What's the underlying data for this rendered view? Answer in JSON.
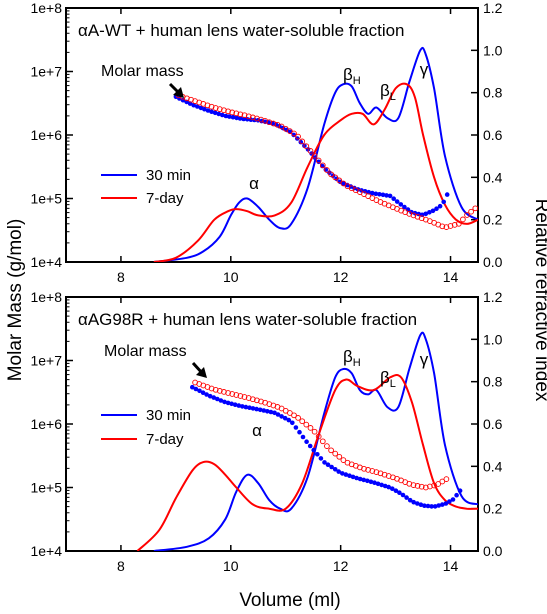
{
  "figure": {
    "ylabel_left": "Molar Mass (g/mol)",
    "ylabel_right": "Relative refractive index",
    "xlabel": "Volume (ml)"
  },
  "chart_data": [
    {
      "type": "line",
      "title": "αA-WT + human lens water-soluble fraction",
      "xlim": [
        7,
        14.5
      ],
      "x_ticks": [
        8,
        10,
        12,
        14
      ],
      "y_left": {
        "scale": "log",
        "ticks": [
          "1e+4",
          "1e+5",
          "1e+6",
          "1e+7",
          "1e+8"
        ],
        "range": [
          10000,
          100000000
        ]
      },
      "y_right": {
        "scale": "linear",
        "ticks": [
          "0.0",
          "0.2",
          "0.4",
          "0.6",
          "0.8",
          "1.0",
          "1.2"
        ],
        "range": [
          0,
          1.2
        ]
      },
      "legend": {
        "position": "left",
        "entries": [
          {
            "name": "30 min",
            "color": "#0000ff"
          },
          {
            "name": "7-day",
            "color": "#ff0000"
          }
        ]
      },
      "annotations": [
        "Molar mass",
        "α",
        "βH",
        "βL",
        "γ"
      ],
      "series": [
        {
          "name": "30 min",
          "kind": "refractive-index",
          "axis": "right",
          "color": "#0000ff",
          "x": [
            8.6,
            9.2,
            9.5,
            9.8,
            10.0,
            10.15,
            10.3,
            10.5,
            10.7,
            10.9,
            11.1,
            11.4,
            11.7,
            11.9,
            12.05,
            12.2,
            12.35,
            12.5,
            12.65,
            12.85,
            13.05,
            13.25,
            13.45,
            13.55,
            13.7,
            13.9,
            14.2,
            14.5
          ],
          "y": [
            0.0,
            0.02,
            0.05,
            0.12,
            0.22,
            0.28,
            0.3,
            0.26,
            0.2,
            0.16,
            0.18,
            0.35,
            0.65,
            0.8,
            0.84,
            0.83,
            0.75,
            0.7,
            0.73,
            0.68,
            0.68,
            0.85,
            1.0,
            0.98,
            0.82,
            0.5,
            0.26,
            0.2
          ]
        },
        {
          "name": "7-day",
          "kind": "refractive-index",
          "axis": "right",
          "color": "#ff0000",
          "x": [
            8.6,
            9.0,
            9.4,
            9.7,
            9.95,
            10.1,
            10.3,
            10.5,
            10.8,
            11.1,
            11.4,
            11.7,
            12.0,
            12.2,
            12.4,
            12.6,
            12.8,
            13.0,
            13.2,
            13.35,
            13.5,
            13.7,
            13.9,
            14.1,
            14.3,
            14.5
          ],
          "y": [
            0.0,
            0.02,
            0.1,
            0.2,
            0.24,
            0.25,
            0.24,
            0.22,
            0.22,
            0.28,
            0.45,
            0.6,
            0.67,
            0.7,
            0.7,
            0.65,
            0.72,
            0.82,
            0.84,
            0.78,
            0.6,
            0.4,
            0.27,
            0.2,
            0.18,
            0.2
          ]
        },
        {
          "name": "30 min",
          "kind": "molar-mass",
          "axis": "left",
          "color": "#0000ff",
          "x": [
            9.0,
            9.3,
            9.6,
            9.9,
            10.2,
            10.5,
            10.8,
            11.1,
            11.4,
            11.7,
            12.0,
            12.3,
            12.6,
            12.9,
            13.1,
            13.3,
            13.5,
            13.7,
            13.85,
            13.95
          ],
          "y": [
            4000000,
            3000000,
            2400000,
            2000000,
            1800000,
            1700000,
            1500000,
            1100000,
            600000,
            300000,
            180000,
            140000,
            120000,
            110000,
            80000,
            60000,
            55000,
            65000,
            80000,
            120000
          ]
        },
        {
          "name": "7-day",
          "kind": "molar-mass",
          "axis": "left",
          "color": "#ff0000",
          "x": [
            9.05,
            9.4,
            9.7,
            10.0,
            10.3,
            10.6,
            10.9,
            11.2,
            11.5,
            11.8,
            12.1,
            12.4,
            12.7,
            13.0,
            13.3,
            13.6,
            13.9,
            14.15,
            14.3,
            14.45
          ],
          "y": [
            4200000,
            3300000,
            2700000,
            2300000,
            2000000,
            1700000,
            1400000,
            1000000,
            500000,
            250000,
            160000,
            120000,
            90000,
            70000,
            55000,
            45000,
            35000,
            40000,
            55000,
            70000
          ]
        }
      ]
    },
    {
      "type": "line",
      "title": "αAG98R + human lens water-soluble fraction",
      "xlim": [
        7,
        14.5
      ],
      "x_ticks": [
        8,
        10,
        12,
        14
      ],
      "y_left": {
        "scale": "log",
        "ticks": [
          "1e+4",
          "1e+5",
          "1e+6",
          "1e+7",
          "1e+8"
        ],
        "range": [
          10000,
          100000000
        ]
      },
      "y_right": {
        "scale": "linear",
        "ticks": [
          "0.0",
          "0.2",
          "0.4",
          "0.6",
          "0.8",
          "1.0",
          "1.2"
        ],
        "range": [
          0,
          1.2
        ]
      },
      "legend": {
        "position": "left",
        "entries": [
          {
            "name": "30 min",
            "color": "#0000ff"
          },
          {
            "name": "7-day",
            "color": "#ff0000"
          }
        ]
      },
      "annotations": [
        "Molar mass",
        "α",
        "βH",
        "βL",
        "γ"
      ],
      "series": [
        {
          "name": "30 min",
          "kind": "refractive-index",
          "axis": "right",
          "color": "#0000ff",
          "x": [
            8.6,
            9.2,
            9.6,
            9.9,
            10.1,
            10.3,
            10.5,
            10.7,
            10.9,
            11.1,
            11.4,
            11.7,
            11.9,
            12.05,
            12.2,
            12.35,
            12.5,
            12.65,
            12.85,
            13.05,
            13.25,
            13.45,
            13.55,
            13.7,
            13.9,
            14.2,
            14.5
          ],
          "y": [
            0.0,
            0.02,
            0.06,
            0.15,
            0.28,
            0.36,
            0.32,
            0.24,
            0.2,
            0.2,
            0.35,
            0.65,
            0.82,
            0.86,
            0.84,
            0.76,
            0.74,
            0.76,
            0.68,
            0.68,
            0.86,
            1.02,
            1.0,
            0.84,
            0.5,
            0.26,
            0.22
          ]
        },
        {
          "name": "7-day",
          "kind": "refractive-index",
          "axis": "right",
          "color": "#ff0000",
          "x": [
            8.3,
            8.7,
            9.0,
            9.3,
            9.5,
            9.7,
            9.9,
            10.1,
            10.4,
            10.7,
            11.0,
            11.3,
            11.6,
            11.9,
            12.1,
            12.3,
            12.6,
            12.9,
            13.1,
            13.3,
            13.5,
            13.7,
            13.9,
            14.1,
            14.3,
            14.5
          ],
          "y": [
            0.0,
            0.1,
            0.25,
            0.38,
            0.42,
            0.41,
            0.36,
            0.3,
            0.22,
            0.2,
            0.2,
            0.32,
            0.55,
            0.76,
            0.81,
            0.78,
            0.76,
            0.82,
            0.82,
            0.7,
            0.5,
            0.32,
            0.24,
            0.21,
            0.2,
            0.2
          ]
        },
        {
          "name": "30 min",
          "kind": "molar-mass",
          "axis": "left",
          "color": "#0000ff",
          "x": [
            9.3,
            9.6,
            9.9,
            10.2,
            10.5,
            10.8,
            11.1,
            11.4,
            11.7,
            12.0,
            12.3,
            12.6,
            12.9,
            13.1,
            13.3,
            13.5,
            13.7,
            13.9,
            14.05,
            14.2
          ],
          "y": [
            3800000,
            2800000,
            2200000,
            1900000,
            1700000,
            1500000,
            1100000,
            500000,
            250000,
            170000,
            140000,
            120000,
            100000,
            80000,
            60000,
            52000,
            50000,
            55000,
            65000,
            95000
          ]
        },
        {
          "name": "7-day",
          "kind": "molar-mass",
          "axis": "left",
          "color": "#ff0000",
          "x": [
            9.35,
            9.7,
            10.0,
            10.3,
            10.6,
            10.9,
            11.2,
            11.5,
            11.8,
            12.1,
            12.4,
            12.7,
            13.0,
            13.3,
            13.55,
            13.75,
            13.95
          ],
          "y": [
            4500000,
            3500000,
            3000000,
            2600000,
            2200000,
            1800000,
            1300000,
            800000,
            400000,
            250000,
            200000,
            170000,
            140000,
            110000,
            100000,
            110000,
            140000
          ]
        }
      ]
    }
  ]
}
